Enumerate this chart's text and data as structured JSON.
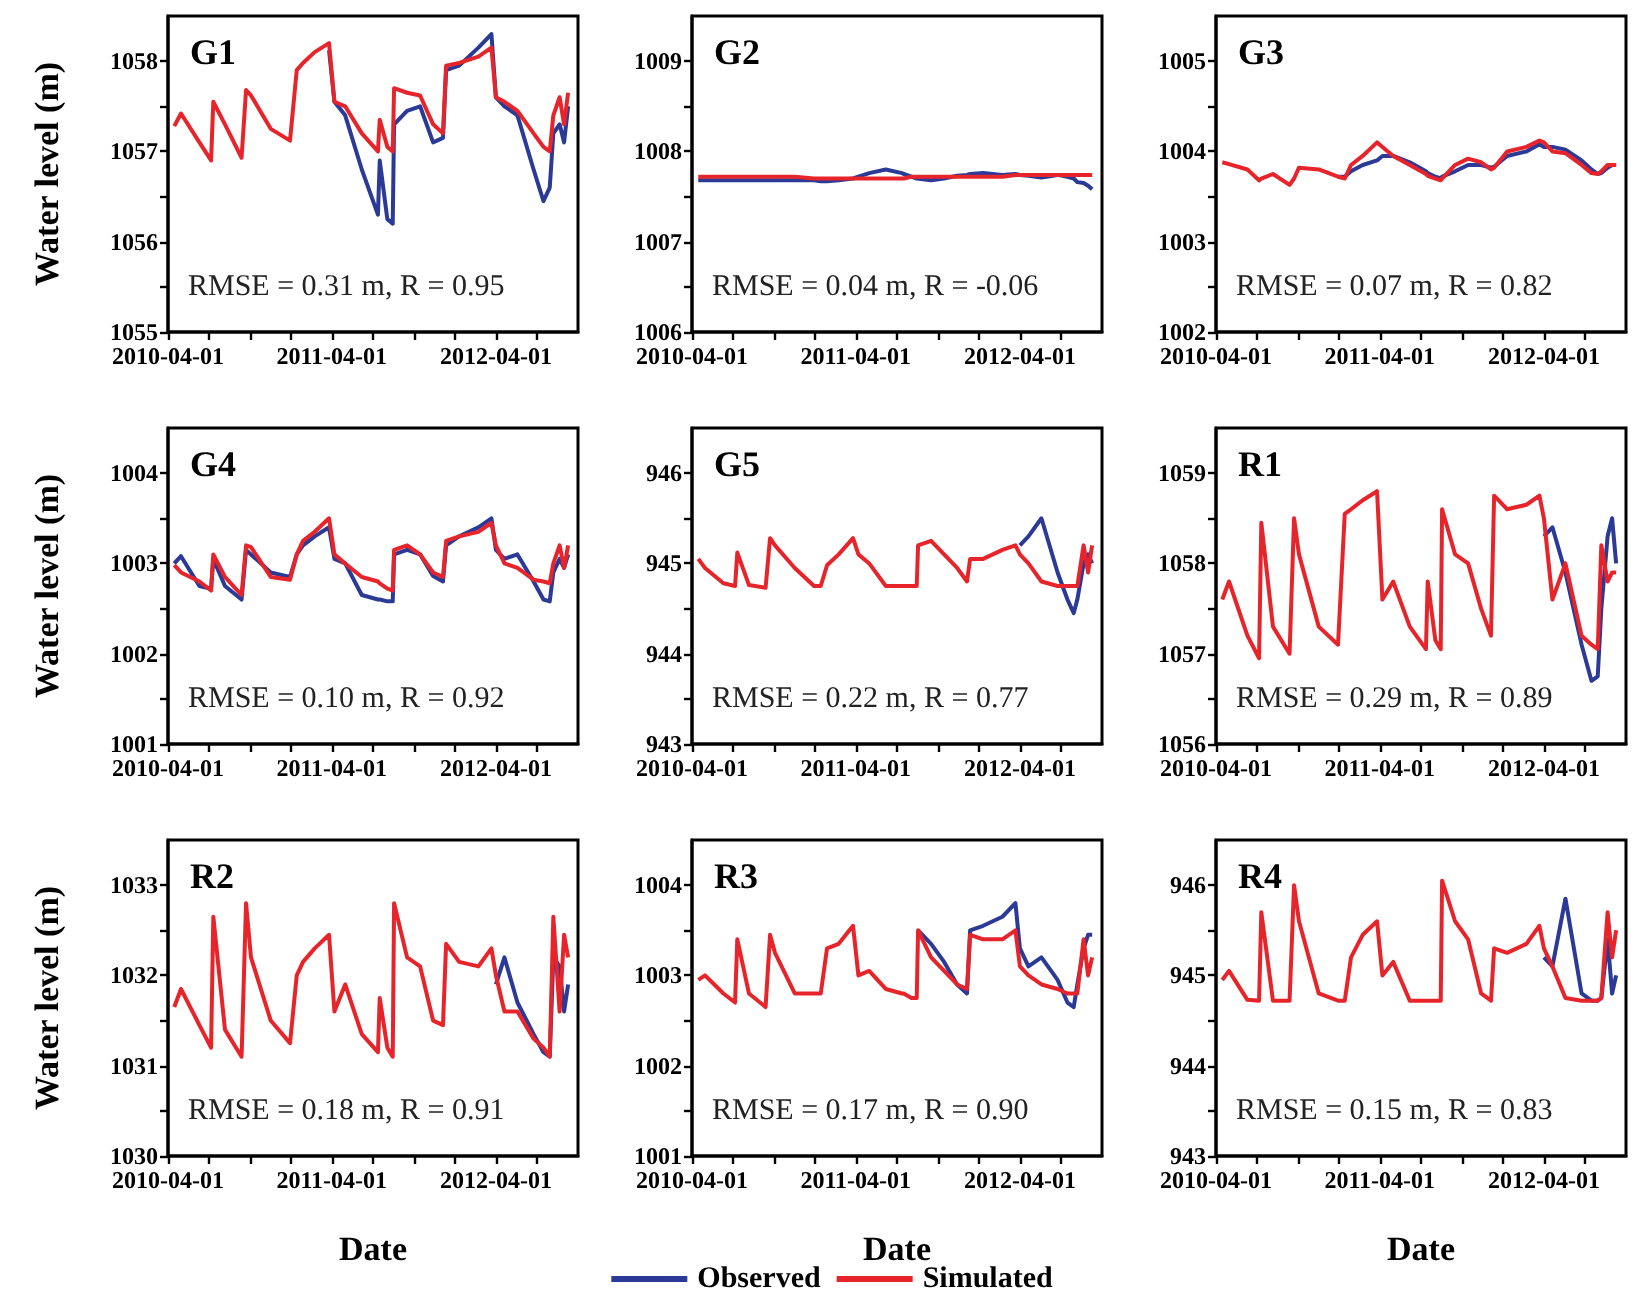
{
  "chart_data": [
    {
      "type": "line",
      "title": "G1",
      "ylabel": "Water level (m)",
      "annotations": [
        "RMSE = 0.31 m, R = 0.95"
      ],
      "x": [
        "2010-04-15",
        "2010-04-30",
        "2010-06-10",
        "2010-07-06",
        "2010-07-11",
        "2010-08-06",
        "2010-09-12",
        "2010-09-22",
        "2010-10-03",
        "2010-11-16",
        "2010-12-29",
        "2011-01-13",
        "2011-01-27",
        "2011-02-22",
        "2011-03-26",
        "2011-04-07",
        "2011-05-01",
        "2011-06-07",
        "2011-07-13",
        "2011-07-17",
        "2011-08-03",
        "2011-08-15",
        "2011-08-18",
        "2011-09-16",
        "2011-10-15",
        "2011-11-13",
        "2011-12-05",
        "2011-12-12",
        "2012-01-10",
        "2012-02-22",
        "2012-03-22",
        "2012-04-01",
        "2012-04-20",
        "2012-05-19",
        "2012-06-24",
        "2012-07-16",
        "2012-07-30",
        "2012-08-07",
        "2012-08-21",
        "2012-08-31",
        "2012-09-09"
      ],
      "xlim": [
        "2010-04-01",
        "2012-10-01"
      ],
      "xticks": [
        "2010-04-01",
        {
          "value": "2010-07-01",
          "label": null
        },
        {
          "value": "2010-10-01",
          "label": null
        },
        {
          "value": "2011-01-01",
          "label": null
        },
        "2011-04-01",
        {
          "value": "2011-07-01",
          "label": null
        },
        {
          "value": "2011-10-01",
          "label": null
        },
        {
          "value": "2012-01-01",
          "label": null
        },
        "2012-04-01",
        {
          "value": "2012-07-01",
          "label": null
        }
      ],
      "ylim": [
        1055,
        1058.5
      ],
      "yticks": [
        1055,
        {
          "value": 1055.5,
          "label": null
        },
        1056,
        {
          "value": 1056.5,
          "label": null
        },
        1057,
        {
          "value": 1057.5,
          "label": null
        },
        1058
      ],
      "series": [
        {
          "color": "#2b3a97",
          "values": [
            null,
            null,
            null,
            null,
            null,
            null,
            null,
            null,
            null,
            null,
            null,
            null,
            null,
            null,
            1058.12,
            1057.55,
            1057.4,
            1056.8,
            1056.3,
            1056.9,
            1056.25,
            1056.2,
            1057.3,
            1057.45,
            1057.5,
            1057.1,
            1057.15,
            1057.9,
            1057.95,
            1058.15,
            1058.3,
            1057.6,
            1057.5,
            1057.4,
            1056.8,
            1056.45,
            1056.6,
            1057.2,
            1057.3,
            1057.1,
            1057.5
          ]
        },
        {
          "color": "#e8242b",
          "values": [
            1057.28,
            1057.42,
            1057.1,
            1056.9,
            1057.55,
            1057.3,
            1056.93,
            1057.68,
            1057.62,
            1057.25,
            1057.12,
            1057.9,
            1057.98,
            1058.1,
            1058.2,
            1057.55,
            1057.5,
            1057.2,
            1057.0,
            1057.35,
            1057.05,
            1057.0,
            1057.7,
            1057.65,
            1057.62,
            1057.3,
            1057.2,
            1057.95,
            1057.98,
            1058.05,
            1058.15,
            1057.6,
            1057.55,
            1057.45,
            1057.2,
            1057.05,
            1057.0,
            1057.4,
            1057.6,
            1057.3,
            1057.65
          ]
        }
      ]
    },
    {
      "type": "line",
      "title": "G2",
      "annotations": [
        "RMSE = 0.04 m, R = -0.06"
      ],
      "x": [
        "2010-04-15",
        "2010-04-30",
        "2010-06-10",
        "2010-07-06",
        "2010-07-11",
        "2010-08-06",
        "2010-09-12",
        "2010-09-22",
        "2010-10-03",
        "2010-11-16",
        "2010-12-29",
        "2011-01-13",
        "2011-01-27",
        "2011-02-22",
        "2011-03-26",
        "2011-04-07",
        "2011-05-01",
        "2011-06-07",
        "2011-07-13",
        "2011-07-17",
        "2011-08-03",
        "2011-08-15",
        "2011-08-18",
        "2011-09-16",
        "2011-10-15",
        "2011-11-13",
        "2011-12-05",
        "2011-12-12",
        "2012-01-10",
        "2012-02-22",
        "2012-03-22",
        "2012-04-01",
        "2012-04-20",
        "2012-05-19",
        "2012-06-24",
        "2012-07-16",
        "2012-07-30",
        "2012-08-07",
        "2012-08-21",
        "2012-08-31",
        "2012-09-09"
      ],
      "xlim": [
        "2010-04-01",
        "2012-10-01"
      ],
      "xticks": [
        "2010-04-01",
        {
          "value": "2010-07-01",
          "label": null
        },
        {
          "value": "2010-10-01",
          "label": null
        },
        {
          "value": "2011-01-01",
          "label": null
        },
        "2011-04-01",
        {
          "value": "2011-07-01",
          "label": null
        },
        {
          "value": "2011-10-01",
          "label": null
        },
        {
          "value": "2012-01-01",
          "label": null
        },
        "2012-04-01",
        {
          "value": "2012-07-01",
          "label": null
        }
      ],
      "ylim": [
        1006,
        1009.5
      ],
      "yticks": [
        1006,
        {
          "value": 1006.5,
          "label": null
        },
        1007,
        {
          "value": 1007.5,
          "label": null
        },
        1008,
        {
          "value": 1008.5,
          "label": null
        },
        1009
      ],
      "series": [
        {
          "color": "#2b3a97",
          "values": [
            1007.68,
            1007.68,
            1007.68,
            1007.68,
            1007.68,
            1007.68,
            1007.68,
            1007.68,
            1007.68,
            1007.68,
            1007.68,
            1007.67,
            1007.67,
            1007.68,
            1007.7,
            1007.72,
            1007.76,
            1007.8,
            1007.76,
            1007.75,
            1007.72,
            1007.7,
            1007.7,
            1007.68,
            1007.7,
            1007.73,
            1007.74,
            1007.75,
            1007.76,
            1007.74,
            1007.75,
            1007.74,
            1007.73,
            1007.71,
            1007.74,
            1007.72,
            1007.7,
            1007.66,
            1007.65,
            1007.62,
            1007.58
          ]
        },
        {
          "color": "#e8242b",
          "values": [
            1007.72,
            1007.72,
            1007.72,
            1007.72,
            1007.72,
            1007.72,
            1007.72,
            1007.72,
            1007.72,
            1007.72,
            1007.7,
            1007.7,
            1007.7,
            1007.7,
            1007.7,
            1007.7,
            1007.7,
            1007.7,
            1007.7,
            1007.7,
            1007.72,
            1007.72,
            1007.72,
            1007.72,
            1007.72,
            1007.72,
            1007.72,
            1007.72,
            1007.72,
            1007.72,
            1007.74,
            1007.74,
            1007.74,
            1007.74,
            1007.74,
            1007.74,
            1007.74,
            1007.74,
            1007.74,
            1007.74,
            1007.74
          ]
        }
      ]
    },
    {
      "type": "line",
      "title": "G3",
      "annotations": [
        "RMSE = 0.07 m, R = 0.82"
      ],
      "x": [
        "2010-04-15",
        "2010-04-30",
        "2010-06-10",
        "2010-07-06",
        "2010-07-11",
        "2010-08-06",
        "2010-09-12",
        "2010-09-22",
        "2010-10-03",
        "2010-11-16",
        "2010-12-29",
        "2011-01-13",
        "2011-01-27",
        "2011-02-22",
        "2011-03-26",
        "2011-04-07",
        "2011-05-01",
        "2011-06-07",
        "2011-07-13",
        "2011-07-17",
        "2011-08-03",
        "2011-08-15",
        "2011-08-18",
        "2011-09-16",
        "2011-10-15",
        "2011-11-13",
        "2011-12-05",
        "2011-12-12",
        "2012-01-10",
        "2012-02-22",
        "2012-03-22",
        "2012-04-01",
        "2012-04-20",
        "2012-05-19",
        "2012-06-24",
        "2012-07-16",
        "2012-07-30",
        "2012-08-07",
        "2012-08-21",
        "2012-08-31",
        "2012-09-09"
      ],
      "xlim": [
        "2010-04-01",
        "2012-10-01"
      ],
      "xticks": [
        "2010-04-01",
        {
          "value": "2010-07-01",
          "label": null
        },
        {
          "value": "2010-10-01",
          "label": null
        },
        {
          "value": "2011-01-01",
          "label": null
        },
        "2011-04-01",
        {
          "value": "2011-07-01",
          "label": null
        },
        {
          "value": "2011-10-01",
          "label": null
        },
        {
          "value": "2012-01-01",
          "label": null
        },
        "2012-04-01",
        {
          "value": "2012-07-01",
          "label": null
        }
      ],
      "ylim": [
        1002,
        1005.5
      ],
      "yticks": [
        1002,
        {
          "value": 1002.5,
          "label": null
        },
        1003,
        {
          "value": 1003.5,
          "label": null
        },
        1004,
        {
          "value": 1004.5,
          "label": null
        },
        1005
      ],
      "series": [
        {
          "color": "#2b3a97",
          "values": [
            null,
            null,
            null,
            null,
            null,
            null,
            null,
            null,
            null,
            null,
            1003.72,
            1003.72,
            1003.78,
            1003.85,
            1003.9,
            1003.95,
            1003.95,
            1003.88,
            1003.78,
            1003.76,
            1003.72,
            1003.7,
            1003.72,
            1003.78,
            1003.85,
            1003.85,
            1003.82,
            1003.83,
            1003.95,
            1004.0,
            1004.08,
            1004.05,
            1004.05,
            1004.02,
            1003.9,
            1003.8,
            1003.75,
            1003.76,
            1003.82,
            1003.85,
            1003.85
          ]
        },
        {
          "color": "#e8242b",
          "values": [
            1003.88,
            1003.86,
            1003.8,
            1003.68,
            1003.7,
            1003.75,
            1003.63,
            1003.7,
            1003.82,
            1003.8,
            1003.72,
            1003.7,
            1003.85,
            1003.95,
            1004.1,
            1004.05,
            1003.95,
            1003.85,
            1003.75,
            1003.73,
            1003.7,
            1003.68,
            1003.7,
            1003.85,
            1003.92,
            1003.88,
            1003.8,
            1003.82,
            1004.0,
            1004.05,
            1004.12,
            1004.1,
            1004.0,
            1003.98,
            1003.85,
            1003.76,
            1003.75,
            1003.78,
            1003.85,
            1003.85,
            1003.85
          ]
        }
      ]
    },
    {
      "type": "line",
      "title": "G4",
      "ylabel": "Water level (m)",
      "annotations": [
        "RMSE = 0.10 m, R = 0.92"
      ],
      "x": [
        "2010-04-15",
        "2010-04-30",
        "2010-06-10",
        "2010-07-06",
        "2010-07-11",
        "2010-08-06",
        "2010-09-12",
        "2010-09-22",
        "2010-10-03",
        "2010-11-16",
        "2010-12-29",
        "2011-01-13",
        "2011-01-27",
        "2011-02-22",
        "2011-03-26",
        "2011-04-07",
        "2011-05-01",
        "2011-06-07",
        "2011-07-13",
        "2011-07-17",
        "2011-08-03",
        "2011-08-15",
        "2011-08-18",
        "2011-09-16",
        "2011-10-15",
        "2011-11-13",
        "2011-12-05",
        "2011-12-12",
        "2012-01-10",
        "2012-02-22",
        "2012-03-22",
        "2012-04-01",
        "2012-04-20",
        "2012-05-19",
        "2012-06-24",
        "2012-07-16",
        "2012-07-30",
        "2012-08-07",
        "2012-08-21",
        "2012-08-31",
        "2012-09-09"
      ],
      "xlim": [
        "2010-04-01",
        "2012-10-01"
      ],
      "xticks": [
        "2010-04-01",
        {
          "value": "2010-07-01",
          "label": null
        },
        {
          "value": "2010-10-01",
          "label": null
        },
        {
          "value": "2011-01-01",
          "label": null
        },
        "2011-04-01",
        {
          "value": "2011-07-01",
          "label": null
        },
        {
          "value": "2011-10-01",
          "label": null
        },
        {
          "value": "2012-01-01",
          "label": null
        },
        "2012-04-01",
        {
          "value": "2012-07-01",
          "label": null
        }
      ],
      "ylim": [
        1001,
        1004.5
      ],
      "yticks": [
        1001,
        {
          "value": 1001.5,
          "label": null
        },
        1002,
        {
          "value": 1002.5,
          "label": null
        },
        1003,
        {
          "value": 1003.5,
          "label": null
        },
        1004
      ],
      "series": [
        {
          "color": "#2b3a97",
          "values": [
            1003.0,
            1003.08,
            1002.75,
            1002.72,
            1003.05,
            1002.75,
            1002.6,
            1003.15,
            1003.1,
            1002.9,
            1002.85,
            1003.1,
            1003.2,
            1003.3,
            1003.4,
            1003.05,
            1003.0,
            1002.65,
            1002.6,
            1002.6,
            1002.58,
            1002.58,
            1003.1,
            1003.15,
            1003.1,
            1002.86,
            1002.8,
            1003.2,
            1003.3,
            1003.4,
            1003.5,
            1003.15,
            1003.05,
            1003.1,
            1002.8,
            1002.6,
            1002.58,
            1002.9,
            1003.05,
            1002.95,
            1003.1
          ]
        },
        {
          "color": "#e8242b",
          "values": [
            1002.98,
            1002.9,
            1002.8,
            1002.7,
            1003.1,
            1002.85,
            1002.65,
            1003.2,
            1003.18,
            1002.85,
            1002.82,
            1003.1,
            1003.25,
            1003.35,
            1003.5,
            1003.1,
            1003.0,
            1002.85,
            1002.8,
            1002.78,
            1002.72,
            1002.7,
            1003.15,
            1003.2,
            1003.1,
            1002.9,
            1002.85,
            1003.25,
            1003.3,
            1003.35,
            1003.45,
            1003.2,
            1003.0,
            1002.95,
            1002.82,
            1002.8,
            1002.78,
            1003.0,
            1003.2,
            1002.95,
            1003.2
          ]
        }
      ]
    },
    {
      "type": "line",
      "title": "G5",
      "annotations": [
        "RMSE = 0.22 m, R = 0.77"
      ],
      "x": [
        "2010-04-15",
        "2010-04-30",
        "2010-06-10",
        "2010-07-06",
        "2010-07-11",
        "2010-08-06",
        "2010-09-12",
        "2010-09-22",
        "2010-10-03",
        "2010-11-16",
        "2010-12-29",
        "2011-01-13",
        "2011-01-27",
        "2011-02-22",
        "2011-03-26",
        "2011-04-07",
        "2011-05-01",
        "2011-06-07",
        "2011-07-13",
        "2011-07-17",
        "2011-08-03",
        "2011-08-15",
        "2011-08-18",
        "2011-09-16",
        "2011-10-15",
        "2011-11-13",
        "2011-12-05",
        "2011-12-12",
        "2012-01-10",
        "2012-02-22",
        "2012-03-22",
        "2012-04-01",
        "2012-04-20",
        "2012-05-19",
        "2012-06-24",
        "2012-07-16",
        "2012-07-30",
        "2012-08-07",
        "2012-08-21",
        "2012-08-31",
        "2012-09-09"
      ],
      "xlim": [
        "2010-04-01",
        "2012-10-01"
      ],
      "xticks": [
        "2010-04-01",
        {
          "value": "2010-07-01",
          "label": null
        },
        {
          "value": "2010-10-01",
          "label": null
        },
        {
          "value": "2011-01-01",
          "label": null
        },
        "2011-04-01",
        {
          "value": "2011-07-01",
          "label": null
        },
        {
          "value": "2011-10-01",
          "label": null
        },
        {
          "value": "2012-01-01",
          "label": null
        },
        "2012-04-01",
        {
          "value": "2012-07-01",
          "label": null
        }
      ],
      "ylim": [
        943,
        946.5
      ],
      "yticks": [
        943,
        {
          "value": 943.5,
          "label": null
        },
        944,
        {
          "value": 944.5,
          "label": null
        },
        945,
        {
          "value": 945.5,
          "label": null
        },
        946
      ],
      "series": [
        {
          "color": "#2b3a97",
          "values": [
            null,
            null,
            null,
            null,
            null,
            null,
            null,
            null,
            null,
            null,
            null,
            null,
            null,
            null,
            null,
            null,
            null,
            null,
            null,
            null,
            null,
            null,
            null,
            null,
            null,
            null,
            null,
            null,
            null,
            null,
            null,
            945.2,
            945.3,
            945.5,
            944.9,
            944.6,
            944.45,
            944.6,
            945.0,
            945.1,
            945.0
          ]
        },
        {
          "color": "#e8242b",
          "values": [
            945.05,
            944.95,
            944.78,
            944.75,
            945.12,
            944.76,
            944.73,
            945.28,
            945.2,
            944.95,
            944.75,
            944.75,
            944.98,
            945.1,
            945.28,
            945.1,
            945.0,
            944.75,
            944.75,
            944.75,
            944.75,
            944.75,
            945.2,
            945.25,
            945.1,
            944.95,
            944.8,
            945.05,
            945.05,
            945.15,
            945.2,
            945.1,
            945.0,
            944.8,
            944.75,
            944.75,
            944.75,
            944.75,
            945.2,
            944.9,
            945.2
          ]
        }
      ]
    },
    {
      "type": "line",
      "title": "R1",
      "annotations": [
        "RMSE = 0.29 m, R = 0.89"
      ],
      "x": [
        "2010-04-15",
        "2010-04-30",
        "2010-06-10",
        "2010-07-06",
        "2010-07-11",
        "2010-08-06",
        "2010-09-12",
        "2010-09-22",
        "2010-10-03",
        "2010-11-16",
        "2010-12-29",
        "2011-01-13",
        "2011-01-27",
        "2011-02-22",
        "2011-03-26",
        "2011-04-07",
        "2011-05-01",
        "2011-06-07",
        "2011-07-13",
        "2011-07-17",
        "2011-08-03",
        "2011-08-15",
        "2011-08-18",
        "2011-09-16",
        "2011-10-15",
        "2011-11-13",
        "2011-12-05",
        "2011-12-12",
        "2012-01-10",
        "2012-02-22",
        "2012-03-22",
        "2012-04-01",
        "2012-04-20",
        "2012-05-19",
        "2012-06-24",
        "2012-07-16",
        "2012-07-30",
        "2012-08-07",
        "2012-08-21",
        "2012-08-31",
        "2012-09-09"
      ],
      "xlim": [
        "2010-04-01",
        "2012-10-01"
      ],
      "xticks": [
        "2010-04-01",
        {
          "value": "2010-07-01",
          "label": null
        },
        {
          "value": "2010-10-01",
          "label": null
        },
        {
          "value": "2011-01-01",
          "label": null
        },
        "2011-04-01",
        {
          "value": "2011-07-01",
          "label": null
        },
        {
          "value": "2011-10-01",
          "label": null
        },
        {
          "value": "2012-01-01",
          "label": null
        },
        "2012-04-01",
        {
          "value": "2012-07-01",
          "label": null
        }
      ],
      "ylim": [
        1056,
        1059.5
      ],
      "yticks": [
        1056,
        {
          "value": 1056.5,
          "label": null
        },
        1057,
        {
          "value": 1057.5,
          "label": null
        },
        1058,
        {
          "value": 1058.5,
          "label": null
        },
        1059
      ],
      "series": [
        {
          "color": "#2b3a97",
          "values": [
            null,
            null,
            null,
            null,
            null,
            null,
            null,
            null,
            null,
            null,
            null,
            null,
            null,
            null,
            null,
            null,
            null,
            null,
            null,
            null,
            null,
            null,
            null,
            null,
            null,
            null,
            null,
            null,
            null,
            null,
            null,
            1058.3,
            1058.4,
            1057.9,
            1057.1,
            1056.7,
            1056.75,
            1057.5,
            1058.3,
            1058.5,
            1058.0
          ]
        },
        {
          "color": "#e8242b",
          "values": [
            1057.6,
            1057.8,
            1057.2,
            1056.95,
            1058.45,
            1057.3,
            1057.0,
            1058.5,
            1058.1,
            1057.3,
            1057.1,
            1058.55,
            1058.6,
            1058.7,
            1058.8,
            1057.6,
            1057.8,
            1057.3,
            1057.05,
            1057.8,
            1057.15,
            1057.05,
            1058.6,
            1058.1,
            1058.0,
            1057.5,
            1057.2,
            1058.75,
            1058.6,
            1058.65,
            1058.75,
            1058.5,
            1057.6,
            1058.0,
            1057.2,
            1057.1,
            1057.05,
            1058.2,
            1057.8,
            1057.9,
            1057.9
          ]
        }
      ]
    },
    {
      "type": "line",
      "title": "R2",
      "ylabel": "Water level (m)",
      "xlabel": "Date",
      "annotations": [
        "RMSE = 0.18 m, R = 0.91"
      ],
      "x": [
        "2010-04-15",
        "2010-04-30",
        "2010-06-10",
        "2010-07-06",
        "2010-07-11",
        "2010-08-06",
        "2010-09-12",
        "2010-09-22",
        "2010-10-03",
        "2010-11-16",
        "2010-12-29",
        "2011-01-13",
        "2011-01-27",
        "2011-02-22",
        "2011-03-26",
        "2011-04-07",
        "2011-05-01",
        "2011-06-07",
        "2011-07-13",
        "2011-07-17",
        "2011-08-03",
        "2011-08-15",
        "2011-08-18",
        "2011-09-16",
        "2011-10-15",
        "2011-11-13",
        "2011-12-05",
        "2011-12-12",
        "2012-01-10",
        "2012-02-22",
        "2012-03-22",
        "2012-04-01",
        "2012-04-20",
        "2012-05-19",
        "2012-06-24",
        "2012-07-16",
        "2012-07-30",
        "2012-08-07",
        "2012-08-21",
        "2012-08-31",
        "2012-09-09"
      ],
      "xlim": [
        "2010-04-01",
        "2012-10-01"
      ],
      "xticks": [
        "2010-04-01",
        {
          "value": "2010-07-01",
          "label": null
        },
        {
          "value": "2010-10-01",
          "label": null
        },
        {
          "value": "2011-01-01",
          "label": null
        },
        "2011-04-01",
        {
          "value": "2011-07-01",
          "label": null
        },
        {
          "value": "2011-10-01",
          "label": null
        },
        {
          "value": "2012-01-01",
          "label": null
        },
        "2012-04-01",
        {
          "value": "2012-07-01",
          "label": null
        }
      ],
      "ylim": [
        1030,
        1033.5
      ],
      "yticks": [
        1030,
        {
          "value": 1030.5,
          "label": null
        },
        1031,
        {
          "value": 1031.5,
          "label": null
        },
        1032,
        {
          "value": 1032.5,
          "label": null
        },
        1033
      ],
      "series": [
        {
          "color": "#2b3a97",
          "values": [
            null,
            null,
            null,
            null,
            null,
            null,
            null,
            null,
            null,
            null,
            null,
            null,
            null,
            null,
            null,
            null,
            null,
            null,
            null,
            null,
            null,
            null,
            null,
            null,
            null,
            null,
            null,
            null,
            null,
            null,
            null,
            1031.9,
            1032.2,
            1031.7,
            1031.35,
            1031.15,
            1031.1,
            1032.2,
            1032.1,
            1031.6,
            1031.9
          ]
        },
        {
          "color": "#e8242b",
          "values": [
            1031.65,
            1031.85,
            1031.45,
            1031.2,
            1032.65,
            1031.4,
            1031.1,
            1032.8,
            1032.2,
            1031.5,
            1031.25,
            1032.0,
            1032.15,
            1032.3,
            1032.45,
            1031.6,
            1031.9,
            1031.35,
            1031.15,
            1031.75,
            1031.2,
            1031.1,
            1032.8,
            1032.2,
            1032.1,
            1031.5,
            1031.45,
            1032.35,
            1032.15,
            1032.1,
            1032.3,
            1032.0,
            1031.6,
            1031.6,
            1031.3,
            1031.2,
            1031.1,
            1032.65,
            1031.6,
            1032.45,
            1032.2
          ]
        }
      ]
    },
    {
      "type": "line",
      "title": "R3",
      "xlabel": "Date",
      "legend": "bottom",
      "annotations": [
        "RMSE = 0.17 m, R = 0.90"
      ],
      "x": [
        "2010-04-15",
        "2010-04-30",
        "2010-06-10",
        "2010-07-06",
        "2010-07-11",
        "2010-08-06",
        "2010-09-12",
        "2010-09-22",
        "2010-10-03",
        "2010-11-16",
        "2010-12-29",
        "2011-01-13",
        "2011-01-27",
        "2011-02-22",
        "2011-03-26",
        "2011-04-07",
        "2011-05-01",
        "2011-06-07",
        "2011-07-13",
        "2011-07-17",
        "2011-08-03",
        "2011-08-15",
        "2011-08-18",
        "2011-09-16",
        "2011-10-15",
        "2011-11-13",
        "2011-12-05",
        "2011-12-12",
        "2012-01-10",
        "2012-02-22",
        "2012-03-22",
        "2012-04-01",
        "2012-04-20",
        "2012-05-19",
        "2012-06-24",
        "2012-07-16",
        "2012-07-30",
        "2012-08-07",
        "2012-08-21",
        "2012-08-31",
        "2012-09-09"
      ],
      "xlim": [
        "2010-04-01",
        "2012-10-01"
      ],
      "xticks": [
        "2010-04-01",
        {
          "value": "2010-07-01",
          "label": null
        },
        {
          "value": "2010-10-01",
          "label": null
        },
        {
          "value": "2011-01-01",
          "label": null
        },
        "2011-04-01",
        {
          "value": "2011-07-01",
          "label": null
        },
        {
          "value": "2011-10-01",
          "label": null
        },
        {
          "value": "2012-01-01",
          "label": null
        },
        "2012-04-01",
        {
          "value": "2012-07-01",
          "label": null
        }
      ],
      "ylim": [
        1001,
        1004.5
      ],
      "yticks": [
        1001,
        {
          "value": 1001.5,
          "label": null
        },
        1002,
        {
          "value": 1002.5,
          "label": null
        },
        1003,
        {
          "value": 1003.5,
          "label": null
        },
        1004
      ],
      "series": [
        {
          "name": "Observed",
          "color": "#2b3a97",
          "values": [
            null,
            null,
            null,
            null,
            null,
            null,
            null,
            null,
            null,
            null,
            null,
            null,
            null,
            null,
            null,
            null,
            null,
            null,
            null,
            null,
            null,
            null,
            1003.5,
            1003.35,
            1003.15,
            1002.9,
            1002.8,
            1003.5,
            1003.55,
            1003.65,
            1003.8,
            1003.3,
            1003.1,
            1003.2,
            1002.95,
            1002.7,
            1002.65,
            1002.9,
            1003.3,
            1003.45,
            1003.45
          ]
        },
        {
          "name": "Simulated",
          "color": "#e8242b",
          "values": [
            1002.95,
            1003.0,
            1002.8,
            1002.7,
            1003.4,
            1002.8,
            1002.65,
            1003.45,
            1003.25,
            1002.8,
            1002.8,
            1002.8,
            1003.3,
            1003.35,
            1003.55,
            1003.0,
            1003.05,
            1002.85,
            1002.8,
            1002.8,
            1002.75,
            1002.75,
            1003.5,
            1003.2,
            1003.05,
            1002.9,
            1002.85,
            1003.45,
            1003.4,
            1003.4,
            1003.5,
            1003.1,
            1003.0,
            1002.9,
            1002.85,
            1002.8,
            1002.8,
            1002.8,
            1003.4,
            1003.0,
            1003.2
          ]
        }
      ]
    },
    {
      "type": "line",
      "title": "R4",
      "xlabel": "Date",
      "annotations": [
        "RMSE = 0.15 m, R = 0.83"
      ],
      "x": [
        "2010-04-15",
        "2010-04-30",
        "2010-06-10",
        "2010-07-06",
        "2010-07-11",
        "2010-08-06",
        "2010-09-12",
        "2010-09-22",
        "2010-10-03",
        "2010-11-16",
        "2010-12-29",
        "2011-01-13",
        "2011-01-27",
        "2011-02-22",
        "2011-03-26",
        "2011-04-07",
        "2011-05-01",
        "2011-06-07",
        "2011-07-13",
        "2011-07-17",
        "2011-08-03",
        "2011-08-15",
        "2011-08-18",
        "2011-09-16",
        "2011-10-15",
        "2011-11-13",
        "2011-12-05",
        "2011-12-12",
        "2012-01-10",
        "2012-02-22",
        "2012-03-22",
        "2012-04-01",
        "2012-04-20",
        "2012-05-19",
        "2012-06-24",
        "2012-07-16",
        "2012-07-30",
        "2012-08-07",
        "2012-08-21",
        "2012-08-31",
        "2012-09-09"
      ],
      "xlim": [
        "2010-04-01",
        "2012-10-01"
      ],
      "xticks": [
        "2010-04-01",
        {
          "value": "2010-07-01",
          "label": null
        },
        {
          "value": "2010-10-01",
          "label": null
        },
        {
          "value": "2011-01-01",
          "label": null
        },
        "2011-04-01",
        {
          "value": "2011-07-01",
          "label": null
        },
        {
          "value": "2011-10-01",
          "label": null
        },
        {
          "value": "2012-01-01",
          "label": null
        },
        "2012-04-01",
        {
          "value": "2012-07-01",
          "label": null
        }
      ],
      "ylim": [
        943,
        946.5
      ],
      "yticks": [
        943,
        {
          "value": 943.5,
          "label": null
        },
        944,
        {
          "value": 944.5,
          "label": null
        },
        945,
        {
          "value": 945.5,
          "label": null
        },
        946
      ],
      "series": [
        {
          "color": "#2b3a97",
          "values": [
            null,
            null,
            null,
            null,
            null,
            null,
            null,
            null,
            null,
            null,
            null,
            null,
            null,
            null,
            null,
            null,
            null,
            null,
            null,
            null,
            null,
            null,
            null,
            null,
            null,
            null,
            null,
            null,
            null,
            null,
            null,
            945.2,
            945.1,
            945.85,
            944.8,
            944.72,
            944.72,
            944.75,
            945.4,
            944.8,
            945.0
          ]
        },
        {
          "color": "#e8242b",
          "values": [
            944.95,
            945.05,
            944.73,
            944.72,
            945.7,
            944.72,
            944.72,
            946.0,
            945.6,
            944.8,
            944.72,
            944.72,
            945.2,
            945.45,
            945.6,
            945.0,
            945.15,
            944.72,
            944.72,
            944.72,
            944.72,
            944.72,
            946.05,
            945.6,
            945.4,
            944.8,
            944.72,
            945.3,
            945.25,
            945.35,
            945.55,
            945.3,
            945.1,
            944.75,
            944.72,
            944.72,
            944.72,
            944.75,
            945.7,
            945.2,
            945.5
          ]
        }
      ]
    }
  ]
}
